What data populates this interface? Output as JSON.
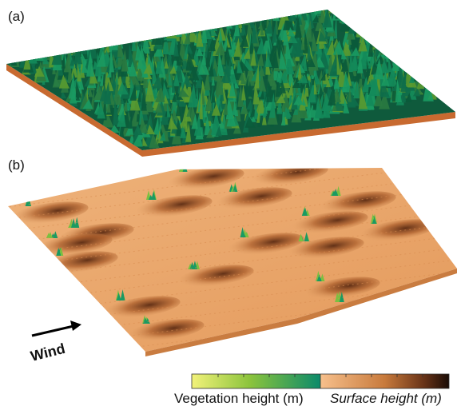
{
  "panels": [
    {
      "label": "(a)"
    },
    {
      "label": "(b)"
    }
  ],
  "wind_label": "Wind",
  "colorbar": {
    "left_label": "Vegetation height (m)",
    "right_label": "Surface height (m)"
  }
}
